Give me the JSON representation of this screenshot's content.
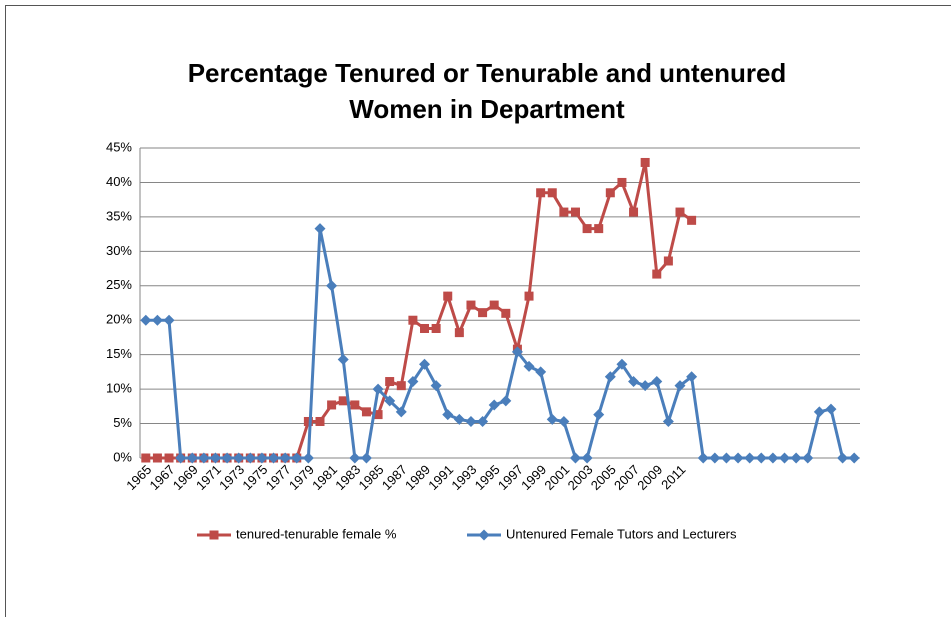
{
  "chart_data": {
    "type": "line",
    "title": [
      "Percentage Tenured or Tenurable and untenured",
      "Women in Department"
    ],
    "categories": [
      "1965",
      null,
      "1967",
      null,
      "1969",
      null,
      "1971",
      null,
      "1973",
      null,
      "1975",
      null,
      "1977",
      null,
      "1979",
      null,
      "1981",
      null,
      "1983",
      null,
      "1985",
      null,
      "1987",
      null,
      "1989",
      null,
      "1991",
      null,
      "1993",
      null,
      "1995",
      null,
      "1997",
      null,
      "1999",
      null,
      "2001",
      null,
      "2003",
      null,
      "2005",
      null,
      "2007",
      null,
      "2009",
      null,
      "2011",
      null,
      null,
      null,
      null,
      null,
      null,
      null,
      null,
      null,
      null,
      null,
      null,
      null,
      null,
      null
    ],
    "series": [
      {
        "name": "tenured-tenurable female %",
        "color": "#be4b48",
        "marker": "square",
        "values": [
          0,
          0,
          0,
          0,
          0,
          0,
          0,
          0,
          0,
          0,
          0,
          0,
          0,
          0,
          5.3,
          5.3,
          7.7,
          8.3,
          7.7,
          6.7,
          6.3,
          11.1,
          10.5,
          20,
          18.8,
          18.8,
          23.5,
          18.2,
          22.2,
          21.1,
          22.2,
          21,
          15.8,
          23.5,
          38.5,
          38.5,
          35.7,
          35.7,
          33.3,
          33.3,
          38.5,
          40,
          35.7,
          42.9,
          26.7,
          28.6,
          35.7,
          34.5,
          null,
          null,
          null,
          null,
          null,
          null,
          null,
          null,
          null,
          null,
          null,
          null,
          null,
          null
        ]
      },
      {
        "name": "Untenured Female Tutors and Lecturers",
        "color": "#4a7ebb",
        "marker": "diamond",
        "values": [
          20,
          20,
          20,
          0,
          0,
          0,
          0,
          0,
          0,
          0,
          0,
          0,
          0,
          0,
          0,
          33.3,
          25,
          14.3,
          0,
          0,
          10,
          8.3,
          6.7,
          11.1,
          13.6,
          10.5,
          6.3,
          5.6,
          5.3,
          5.3,
          7.7,
          8.3,
          15.4,
          13.3,
          12.5,
          5.6,
          5.3,
          0,
          0,
          6.3,
          11.8,
          13.6,
          11.1,
          10.5,
          11.1,
          5.3,
          10.5,
          11.8,
          0,
          0,
          0,
          0,
          0,
          0,
          0,
          0,
          0,
          0,
          6.7,
          7.1,
          0,
          0
        ]
      }
    ],
    "ylim": [
      0,
      45
    ],
    "yticks": [
      {
        "value": 0,
        "label": "0%"
      },
      {
        "value": 5,
        "label": "5%"
      },
      {
        "value": 10,
        "label": "10%"
      },
      {
        "value": 15,
        "label": "15%"
      },
      {
        "value": 20,
        "label": "20%"
      },
      {
        "value": 25,
        "label": "25%"
      },
      {
        "value": 30,
        "label": "30%"
      },
      {
        "value": 35,
        "label": "35%"
      },
      {
        "value": 40,
        "label": "40%"
      },
      {
        "value": 45,
        "label": "45%"
      }
    ],
    "grid": true,
    "legend": "bottom"
  }
}
